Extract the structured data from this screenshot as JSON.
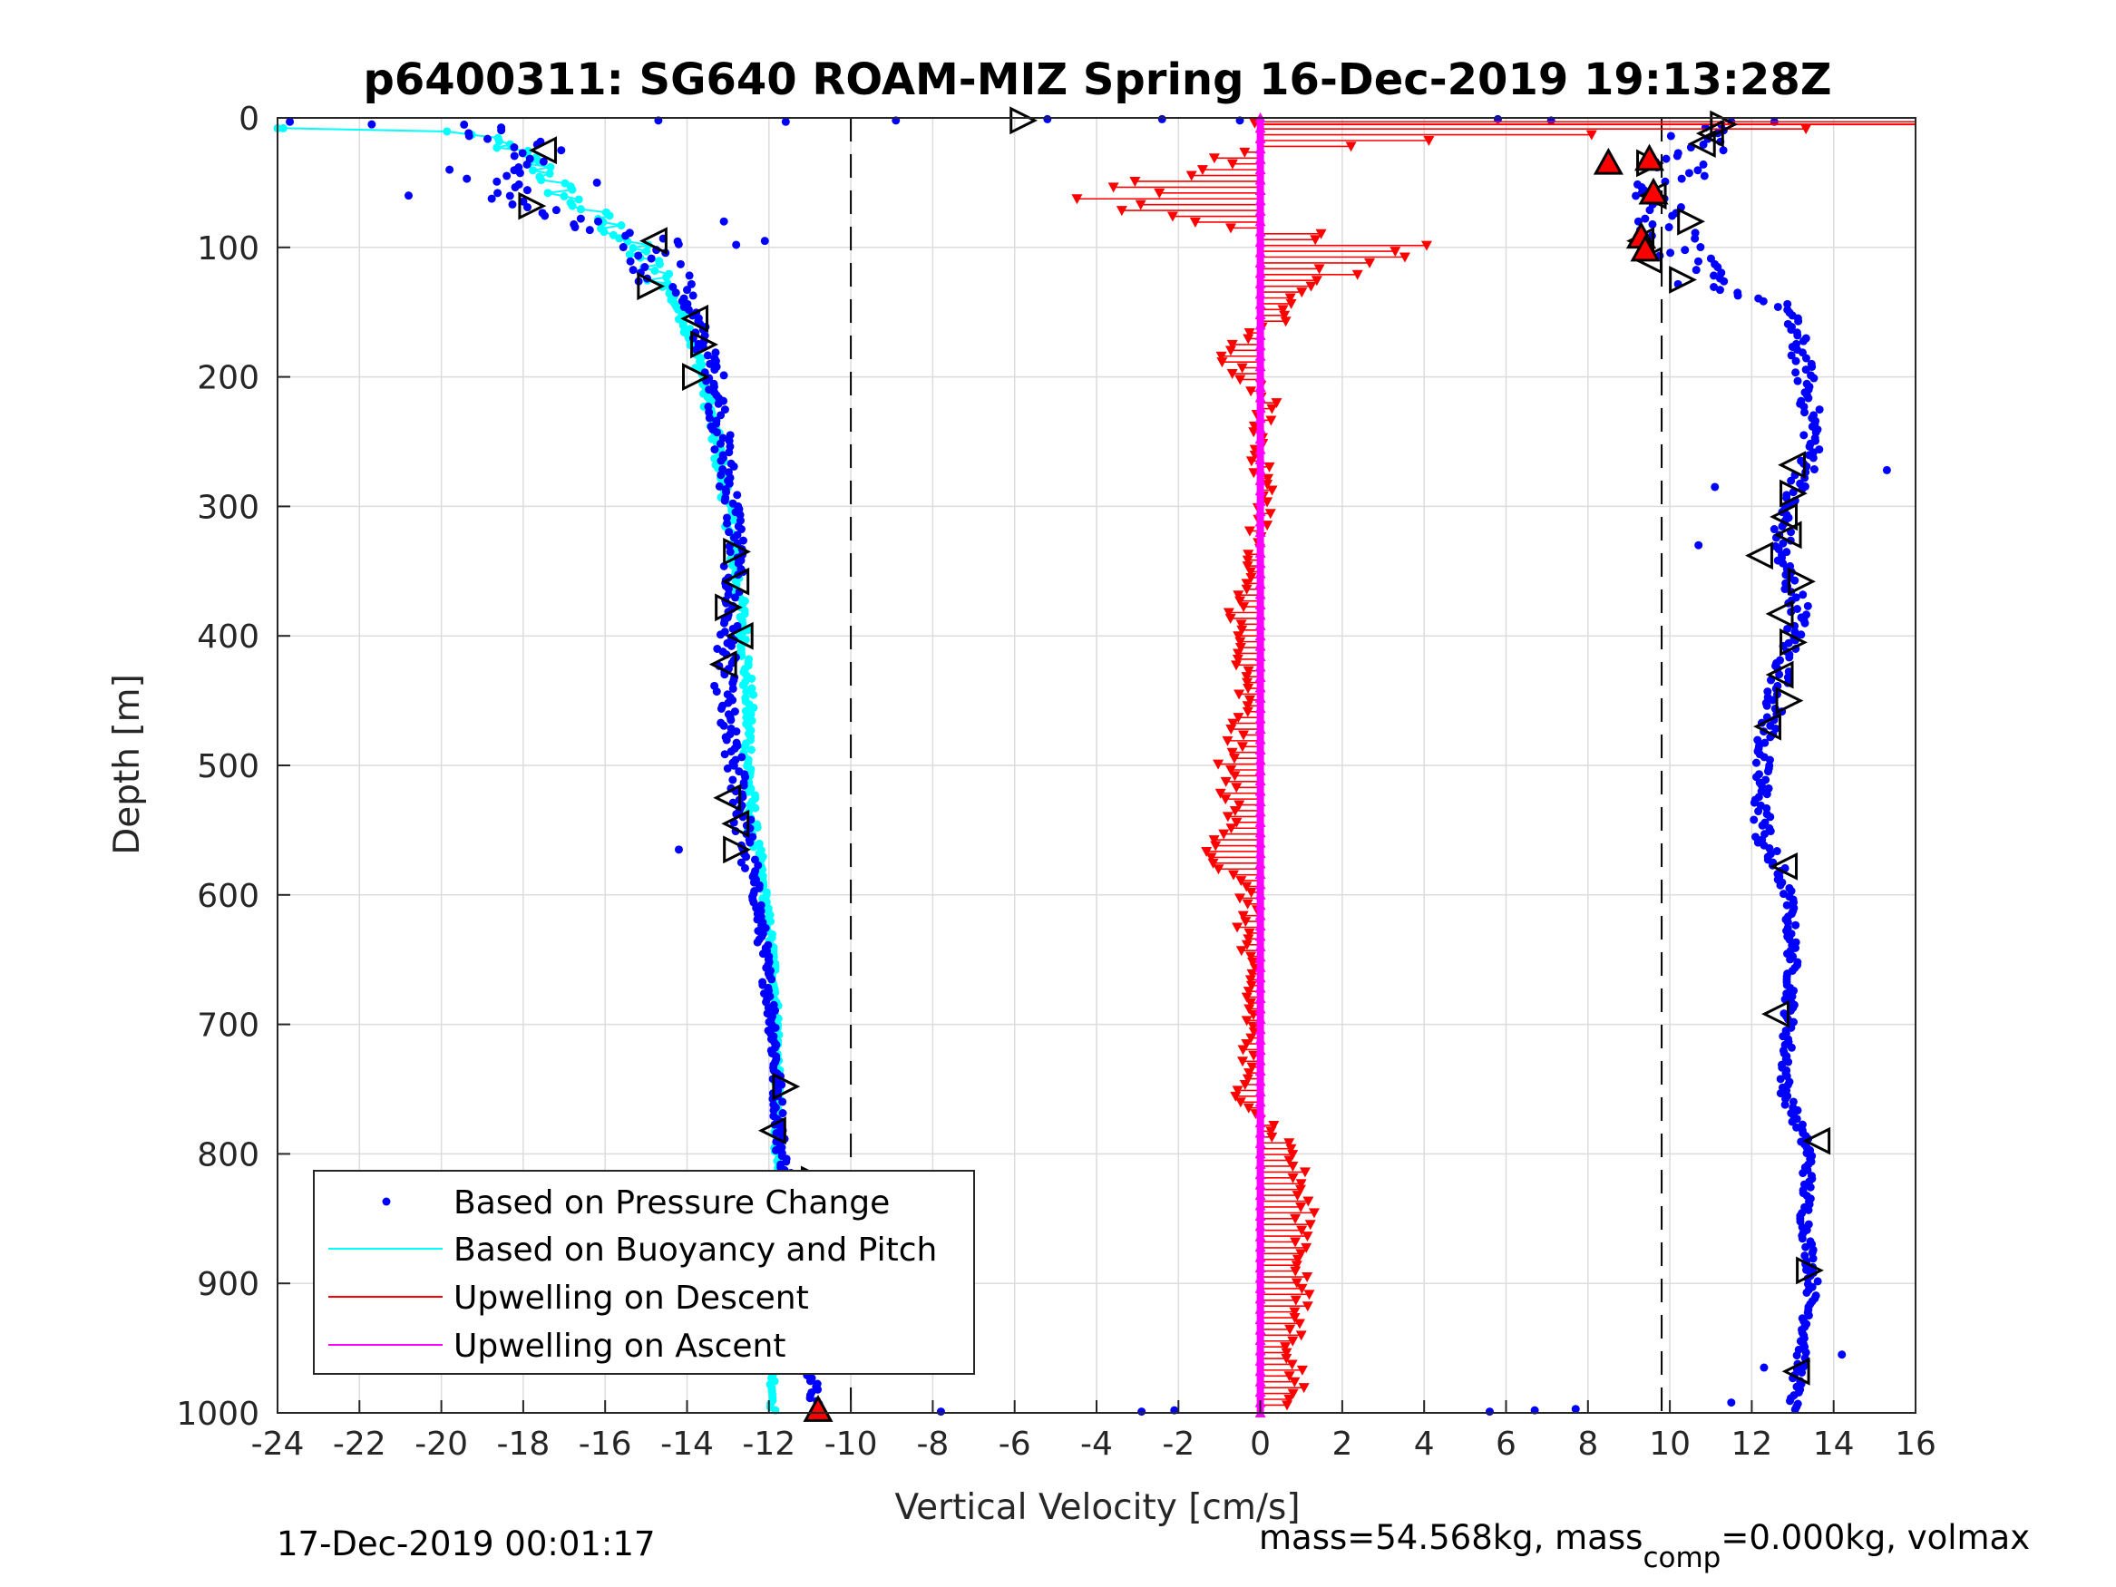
{
  "chart_data": {
    "type": "scatter",
    "title": "p6400311: SG640 ROAM-MIZ Spring 16-Dec-2019 19:13:28Z",
    "xlabel": "Vertical Velocity [cm/s]",
    "ylabel": "Depth [m]",
    "xlim": [
      -24,
      16
    ],
    "ylim": [
      1000,
      0
    ],
    "y_reversed": true,
    "grid": true,
    "xticks": [
      -24,
      -22,
      -20,
      -18,
      -16,
      -14,
      -12,
      -10,
      -8,
      -6,
      -4,
      -2,
      0,
      2,
      4,
      6,
      8,
      10,
      12,
      14,
      16
    ],
    "yticks": [
      0,
      100,
      200,
      300,
      400,
      500,
      600,
      700,
      800,
      900,
      1000
    ],
    "reference_lines_x": [
      -10,
      9.8
    ],
    "legend_position": "bottom-left",
    "series": [
      {
        "name": "Based on Pressure Change",
        "color": "#0000ff",
        "style": "dots",
        "profile": [
          [
            -19.5,
            5
          ],
          [
            -18.5,
            15
          ],
          [
            -17.5,
            30
          ],
          [
            -18.8,
            50
          ],
          [
            -17.8,
            70
          ],
          [
            -16.5,
            85
          ],
          [
            -15,
            95
          ],
          [
            -14.8,
            110
          ],
          [
            -14,
            140
          ],
          [
            -13.6,
            175
          ],
          [
            -13.3,
            200
          ],
          [
            -13.2,
            240
          ],
          [
            -13,
            280
          ],
          [
            -12.8,
            320
          ],
          [
            -12.9,
            360
          ],
          [
            -13,
            400
          ],
          [
            -13.1,
            440
          ],
          [
            -13,
            480
          ],
          [
            -12.7,
            520
          ],
          [
            -12.6,
            560
          ],
          [
            -12.3,
            600
          ],
          [
            -12.1,
            650
          ],
          [
            -11.9,
            700
          ],
          [
            -11.8,
            750
          ],
          [
            -11.7,
            800
          ],
          [
            -11.2,
            850
          ],
          [
            -11,
            900
          ],
          [
            -11,
            950
          ],
          [
            -10.9,
            990
          ]
        ],
        "profile_up": [
          [
            11,
            5
          ],
          [
            10.5,
            30
          ],
          [
            9.8,
            60
          ],
          [
            10,
            90
          ],
          [
            10.2,
            110
          ],
          [
            11,
            130
          ],
          [
            12.8,
            145
          ],
          [
            13.1,
            170
          ],
          [
            13.3,
            200
          ],
          [
            13.5,
            240
          ],
          [
            13.4,
            270
          ],
          [
            12.8,
            300
          ],
          [
            12.7,
            340
          ],
          [
            13.2,
            380
          ],
          [
            12.8,
            420
          ],
          [
            12.5,
            460
          ],
          [
            12.2,
            500
          ],
          [
            12.3,
            560
          ],
          [
            12.9,
            600
          ],
          [
            13,
            650
          ],
          [
            12.9,
            700
          ],
          [
            12.8,
            750
          ],
          [
            13.4,
            800
          ],
          [
            13.3,
            850
          ],
          [
            13.5,
            900
          ],
          [
            13.2,
            960
          ],
          [
            13,
            995
          ]
        ],
        "scatter_points": [
          [
            -23.7,
            3
          ],
          [
            -21.7,
            5
          ],
          [
            -14.7,
            2
          ],
          [
            -8.9,
            2
          ],
          [
            -5.2,
            1
          ],
          [
            -2.4,
            1
          ],
          [
            -0.5,
            2
          ],
          [
            5.8,
            1
          ],
          [
            7.1,
            2
          ],
          [
            11.5,
            3
          ],
          [
            -19.8,
            40
          ],
          [
            -20.8,
            60
          ],
          [
            -16.2,
            50
          ],
          [
            -13.1,
            80
          ],
          [
            -12.1,
            95
          ],
          [
            -12.8,
            98
          ],
          [
            15.3,
            272
          ],
          [
            11.1,
            285
          ],
          [
            10.7,
            330
          ],
          [
            -14.2,
            565
          ],
          [
            14.2,
            955
          ],
          [
            12.3,
            965
          ],
          [
            -7.8,
            999
          ],
          [
            -2.9,
            999
          ],
          [
            -2.1,
            998
          ],
          [
            5.6,
            999
          ],
          [
            6.7,
            998
          ],
          [
            7.7,
            997
          ],
          [
            11.5,
            992
          ]
        ]
      },
      {
        "name": "Based on Buoyancy and Pitch",
        "color": "#00ffff",
        "style": "line-dots",
        "profile": [
          [
            -24,
            8
          ],
          [
            -20,
            8
          ],
          [
            -19.5,
            12
          ],
          [
            -18.5,
            20
          ],
          [
            -17.5,
            40
          ],
          [
            -17,
            60
          ],
          [
            -16,
            80
          ],
          [
            -15.3,
            100
          ],
          [
            -14.5,
            130
          ],
          [
            -14,
            160
          ],
          [
            -13.6,
            200
          ],
          [
            -13.3,
            250
          ],
          [
            -13,
            300
          ],
          [
            -12.8,
            350
          ],
          [
            -12.6,
            400
          ],
          [
            -12.5,
            450
          ],
          [
            -12.5,
            500
          ],
          [
            -12.4,
            550
          ],
          [
            -12.1,
            600
          ],
          [
            -11.9,
            650
          ],
          [
            -11.8,
            700
          ],
          [
            -11.8,
            750
          ],
          [
            -11.8,
            800
          ],
          [
            -11.9,
            850
          ],
          [
            -11.9,
            900
          ],
          [
            -11.9,
            950
          ],
          [
            -11.9,
            1000
          ]
        ]
      },
      {
        "name": "Upwelling on Descent",
        "color": "#ff0000",
        "style": "line-triangles",
        "profile": [
          [
            15,
            5
          ],
          [
            -1.5,
            25
          ],
          [
            -2.2,
            45
          ],
          [
            -3.8,
            60
          ],
          [
            -1.6,
            80
          ],
          [
            4,
            100
          ],
          [
            1.2,
            130
          ],
          [
            0.3,
            160
          ],
          [
            -1,
            180
          ],
          [
            0.2,
            220
          ],
          [
            -0.1,
            260
          ],
          [
            0.2,
            300
          ],
          [
            -0.4,
            350
          ],
          [
            -0.6,
            400
          ],
          [
            -0.4,
            450
          ],
          [
            -0.8,
            500
          ],
          [
            -0.7,
            550
          ],
          [
            -1.2,
            570
          ],
          [
            -0.3,
            600
          ],
          [
            -0.4,
            650
          ],
          [
            -0.2,
            700
          ],
          [
            -0.5,
            750
          ],
          [
            0.8,
            800
          ],
          [
            1.1,
            850
          ],
          [
            1,
            900
          ],
          [
            0.8,
            950
          ],
          [
            0.9,
            990
          ]
        ]
      },
      {
        "name": "Upwelling on Ascent",
        "color": "#ff00ff",
        "style": "line",
        "profile": [
          [
            0,
            0
          ],
          [
            0,
            1000
          ]
        ]
      }
    ],
    "black_triangle_markers": [
      [
        -5.8,
        2,
        "right"
      ],
      [
        -17.5,
        25,
        "left"
      ],
      [
        -17.8,
        68,
        "right"
      ],
      [
        -14.8,
        95,
        "left"
      ],
      [
        -14.9,
        130,
        "right"
      ],
      [
        -13.8,
        155,
        "left"
      ],
      [
        -13.6,
        175,
        "right"
      ],
      [
        -13.8,
        200,
        "right"
      ],
      [
        -12.8,
        335,
        "right"
      ],
      [
        -12.8,
        358,
        "left"
      ],
      [
        -13,
        378,
        "right"
      ],
      [
        -12.7,
        400,
        "left"
      ],
      [
        -13.1,
        422,
        "left"
      ],
      [
        -13,
        525,
        "left"
      ],
      [
        -12.8,
        545,
        "left"
      ],
      [
        -12.8,
        565,
        "right"
      ],
      [
        -11.6,
        748,
        "right"
      ],
      [
        -11.9,
        782,
        "left"
      ],
      [
        -10.9,
        820,
        "right"
      ],
      [
        11,
        12,
        "left"
      ],
      [
        11.3,
        5,
        "right"
      ],
      [
        10.8,
        20,
        "left"
      ],
      [
        9.5,
        35,
        "right"
      ],
      [
        9.6,
        60,
        "left"
      ],
      [
        10.5,
        80,
        "right"
      ],
      [
        9.3,
        95,
        "left"
      ],
      [
        9.5,
        110,
        "left"
      ],
      [
        10.3,
        125,
        "right"
      ],
      [
        13,
        268,
        "left"
      ],
      [
        13,
        290,
        "right"
      ],
      [
        12.8,
        308,
        "left"
      ],
      [
        12.9,
        322,
        "left"
      ],
      [
        12.2,
        338,
        "left"
      ],
      [
        13.2,
        358,
        "right"
      ],
      [
        12.7,
        383,
        "left"
      ],
      [
        13,
        405,
        "right"
      ],
      [
        12.7,
        430,
        "left"
      ],
      [
        12.9,
        450,
        "right"
      ],
      [
        12.4,
        470,
        "left"
      ],
      [
        12.8,
        578,
        "left"
      ],
      [
        12.6,
        692,
        "left"
      ],
      [
        13.6,
        790,
        "left"
      ],
      [
        13.4,
        890,
        "right"
      ],
      [
        13.1,
        968,
        "left"
      ]
    ],
    "red_triangle_markers": [
      [
        -10.8,
        998
      ],
      [
        8.5,
        35
      ],
      [
        9.5,
        32
      ],
      [
        9.6,
        58
      ],
      [
        9.3,
        92
      ],
      [
        9.4,
        102
      ]
    ]
  },
  "footer": {
    "timestamp": "17-Dec-2019 00:01:17",
    "mass_prefix": "mass=54.568kg, mass",
    "mass_subscript": "comp",
    "mass_suffix": "=0.000kg, volmax"
  }
}
